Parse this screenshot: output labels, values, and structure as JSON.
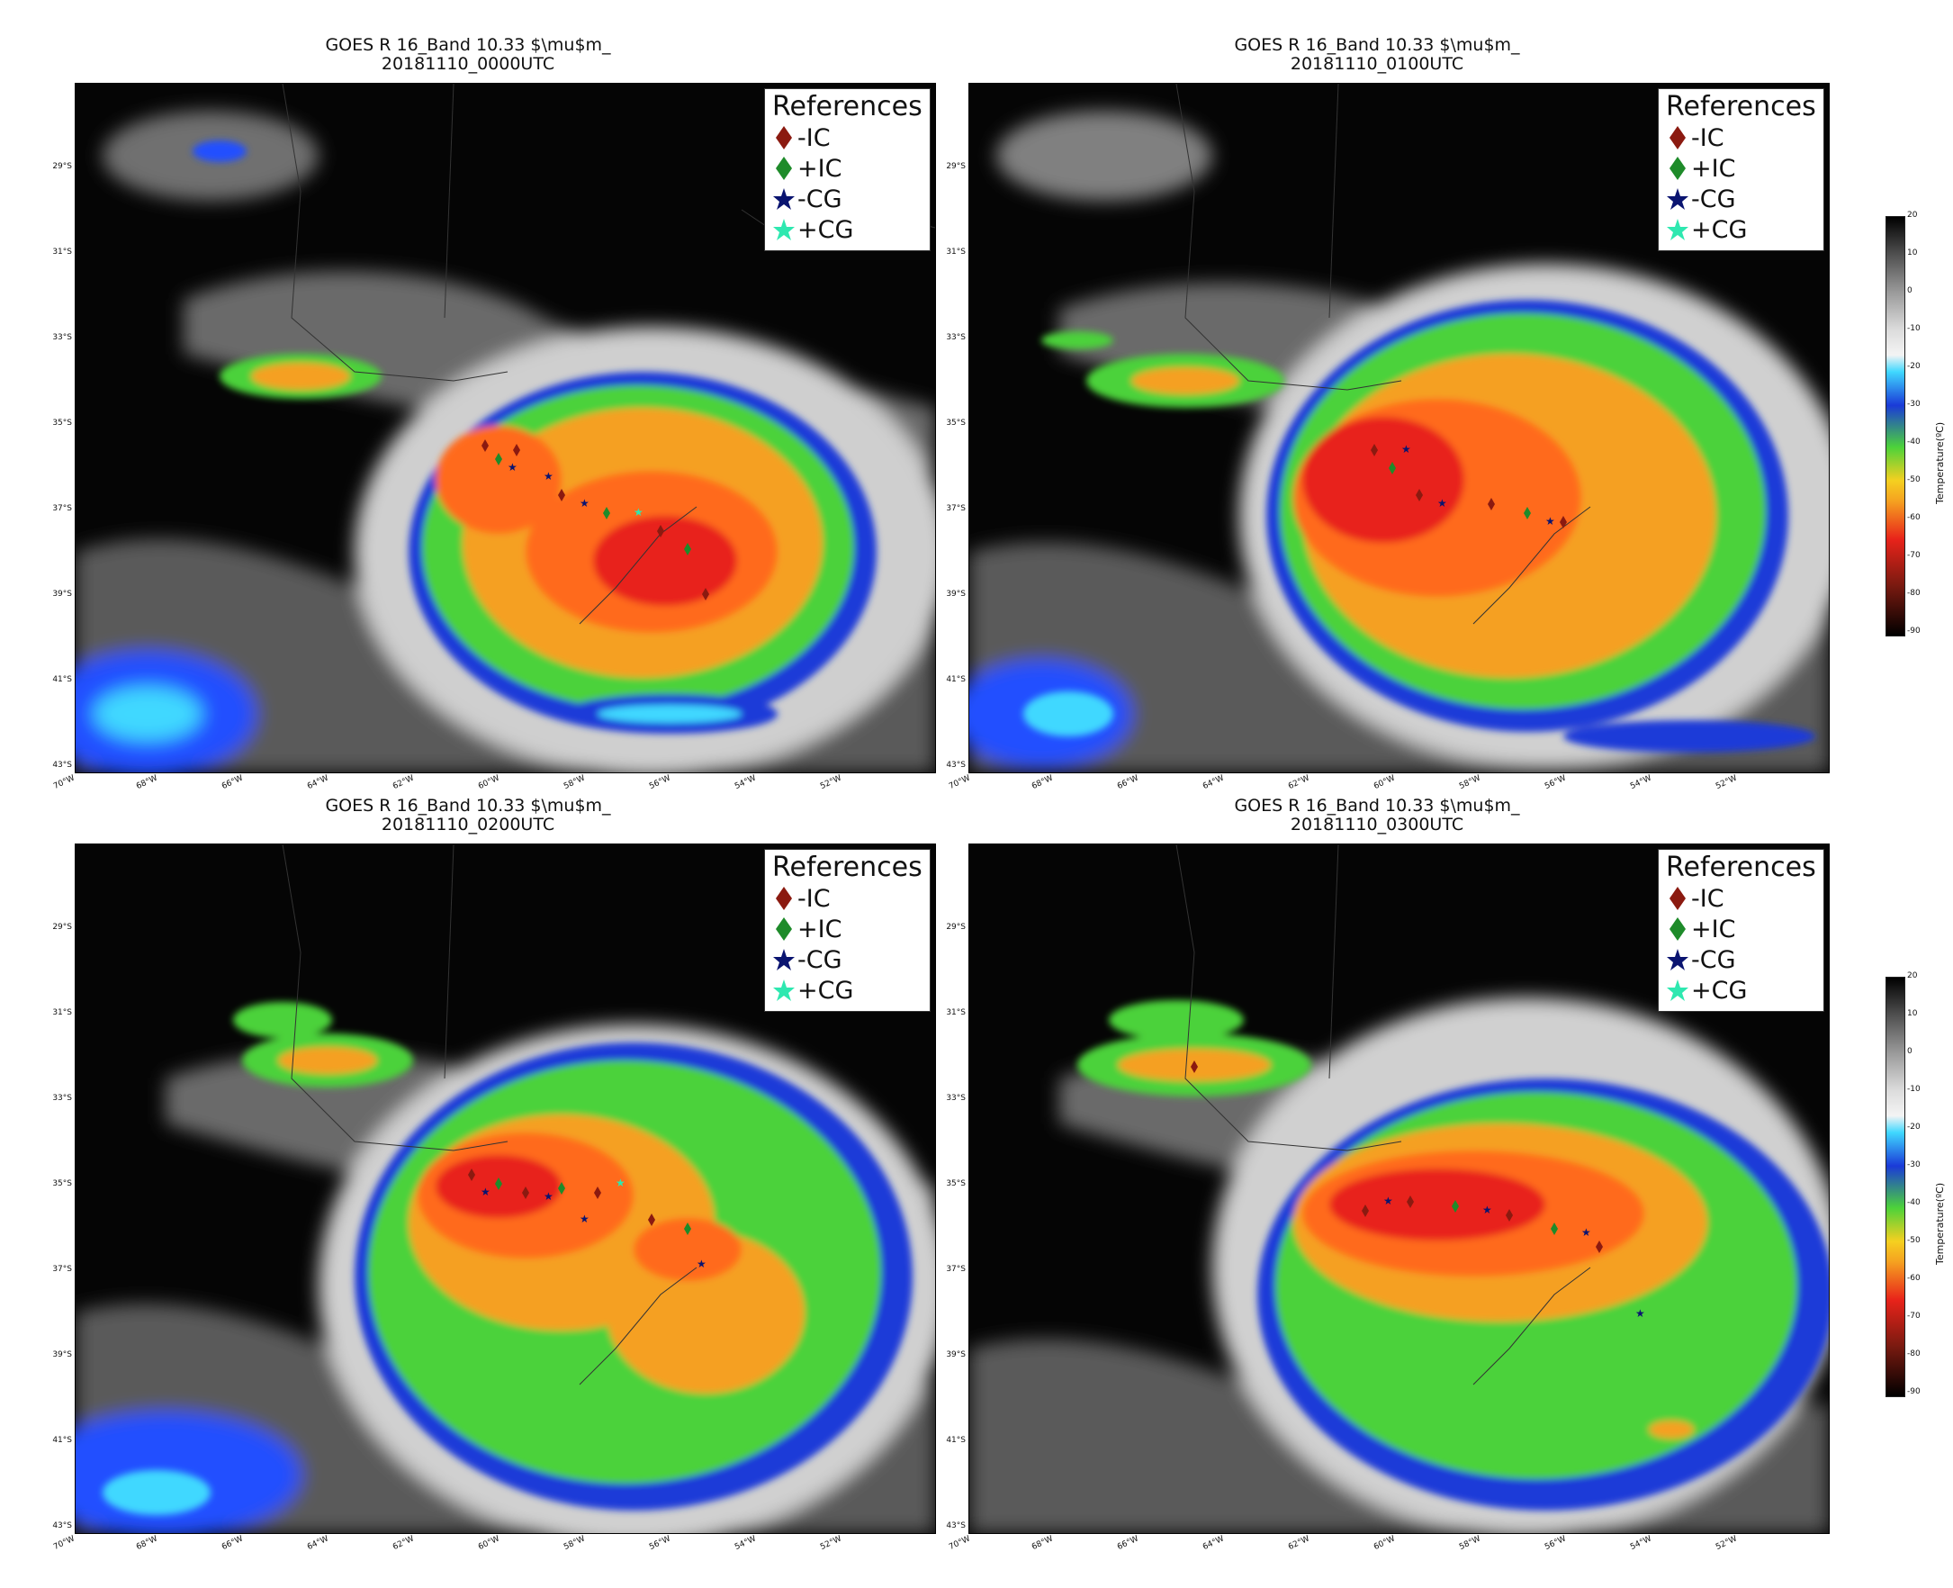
{
  "panels": [
    {
      "title_line1": "GOES R 16_Band 10.33 $\\mu$m_",
      "title_line2": "20181110_0000UTC"
    },
    {
      "title_line1": "GOES R 16_Band 10.33 $\\mu$m_",
      "title_line2": "20181110_0100UTC"
    },
    {
      "title_line1": "GOES R 16_Band 10.33 $\\mu$m_",
      "title_line2": "20181110_0200UTC"
    },
    {
      "title_line1": "GOES R 16_Band 10.33 $\\mu$m_",
      "title_line2": "20181110_0300UTC"
    }
  ],
  "legend": {
    "title": "References",
    "items": [
      {
        "label": "-IC",
        "marker": "diamond",
        "color": "#8b1a10"
      },
      {
        "label": "+IC",
        "marker": "diamond",
        "color": "#1e8b2a"
      },
      {
        "label": "-CG",
        "marker": "star",
        "color": "#0a1470"
      },
      {
        "label": "+CG",
        "marker": "star",
        "color": "#2ee8b0"
      }
    ]
  },
  "lat_labels": [
    "29°S",
    "31°S",
    "33°S",
    "35°S",
    "37°S",
    "39°S",
    "41°S",
    "43°S"
  ],
  "lon_labels": [
    "70°W",
    "68°W",
    "66°W",
    "64°W",
    "62°W",
    "60°W",
    "58°W",
    "56°W",
    "54°W",
    "52°W"
  ],
  "colorbar": {
    "title": "Temperature(ºC)",
    "ticks": [
      "20",
      "10",
      "0",
      "-10",
      "-20",
      "-30",
      "-40",
      "-50",
      "-60",
      "-70",
      "-80",
      "-90"
    ],
    "range": [
      -90,
      20
    ]
  },
  "colors": {
    "cold_red": "#e8231a",
    "orange": "#f5a020",
    "green": "#4cd23a",
    "blue": "#1a3ad8",
    "cyan": "#40d8ff",
    "background": "#050505"
  }
}
